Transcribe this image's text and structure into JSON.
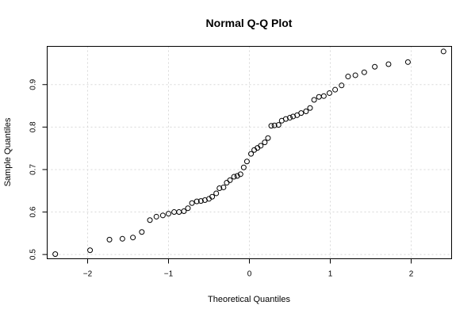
{
  "chart_data": {
    "type": "scatter",
    "title": "Normal Q-Q Plot",
    "xlabel": "Theoretical Quantiles",
    "ylabel": "Sample Quantiles",
    "xlim": [
      -2.5,
      2.5
    ],
    "ylim": [
      0.49,
      0.99
    ],
    "xticks": [
      -2,
      -1,
      0,
      1,
      2
    ],
    "xtick_labels": [
      "−2",
      "−1",
      "0",
      "1",
      "2"
    ],
    "yticks": [
      0.5,
      0.6,
      0.7,
      0.8,
      0.9
    ],
    "ytick_labels": [
      "0.5",
      "0.6",
      "0.7",
      "0.8",
      "0.9"
    ],
    "grid": true,
    "points": [
      [
        -2.4,
        0.501
      ],
      [
        -1.97,
        0.51
      ],
      [
        -1.73,
        0.535
      ],
      [
        -1.57,
        0.537
      ],
      [
        -1.44,
        0.54
      ],
      [
        -1.33,
        0.553
      ],
      [
        -1.23,
        0.581
      ],
      [
        -1.15,
        0.589
      ],
      [
        -1.07,
        0.592
      ],
      [
        -1.0,
        0.596
      ],
      [
        -0.93,
        0.6
      ],
      [
        -0.87,
        0.6
      ],
      [
        -0.81,
        0.602
      ],
      [
        -0.76,
        0.609
      ],
      [
        -0.71,
        0.621
      ],
      [
        -0.65,
        0.625
      ],
      [
        -0.6,
        0.626
      ],
      [
        -0.55,
        0.628
      ],
      [
        -0.5,
        0.631
      ],
      [
        -0.46,
        0.636
      ],
      [
        -0.41,
        0.644
      ],
      [
        -0.37,
        0.656
      ],
      [
        -0.32,
        0.658
      ],
      [
        -0.28,
        0.669
      ],
      [
        -0.24,
        0.675
      ],
      [
        -0.19,
        0.683
      ],
      [
        -0.15,
        0.685
      ],
      [
        -0.11,
        0.689
      ],
      [
        -0.07,
        0.705
      ],
      [
        -0.03,
        0.719
      ],
      [
        0.02,
        0.737
      ],
      [
        0.06,
        0.746
      ],
      [
        0.1,
        0.751
      ],
      [
        0.14,
        0.756
      ],
      [
        0.19,
        0.764
      ],
      [
        0.23,
        0.774
      ],
      [
        0.27,
        0.803
      ],
      [
        0.31,
        0.804
      ],
      [
        0.36,
        0.805
      ],
      [
        0.4,
        0.815
      ],
      [
        0.45,
        0.819
      ],
      [
        0.5,
        0.822
      ],
      [
        0.54,
        0.825
      ],
      [
        0.59,
        0.828
      ],
      [
        0.64,
        0.833
      ],
      [
        0.7,
        0.837
      ],
      [
        0.75,
        0.845
      ],
      [
        0.8,
        0.864
      ],
      [
        0.86,
        0.871
      ],
      [
        0.92,
        0.873
      ],
      [
        0.99,
        0.88
      ],
      [
        1.06,
        0.888
      ],
      [
        1.14,
        0.898
      ],
      [
        1.22,
        0.919
      ],
      [
        1.31,
        0.922
      ],
      [
        1.42,
        0.929
      ],
      [
        1.55,
        0.942
      ],
      [
        1.72,
        0.948
      ],
      [
        1.96,
        0.953
      ],
      [
        2.4,
        0.978
      ]
    ]
  }
}
